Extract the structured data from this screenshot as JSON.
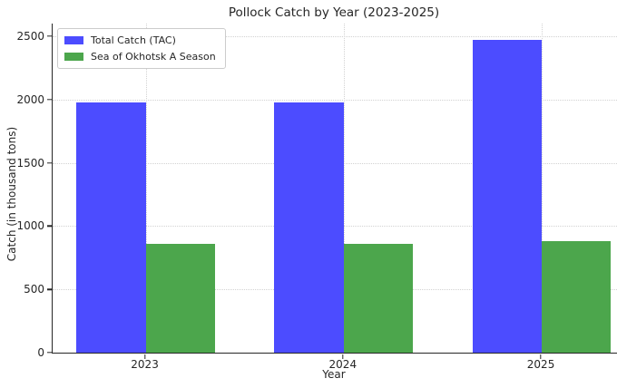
{
  "chart_data": {
    "type": "bar",
    "title": "Pollock Catch by Year (2023-2025)",
    "xlabel": "Year",
    "ylabel": "Catch (in thousand tons)",
    "categories": [
      "2023",
      "2024",
      "2025"
    ],
    "series": [
      {
        "name": "Total Catch (TAC)",
        "color": "#4C4CFF",
        "values": [
          1980,
          1980,
          2470
        ]
      },
      {
        "name": "Sea of Okhotsk A Season",
        "color": "#4CA64C",
        "values": [
          860,
          860,
          880
        ]
      }
    ],
    "yticks": [
      0,
      500,
      1000,
      1500,
      2000,
      2500
    ],
    "ylim": [
      0,
      2600
    ],
    "xlim": [
      -0.47,
      2.38
    ],
    "bar_width": 0.35,
    "grid": true,
    "grid_style": "dotted",
    "legend_position": "upper left",
    "colors": {
      "grid": "#d2d2d2",
      "spine": "#262626",
      "text": "#262626",
      "background": "#ffffff"
    }
  }
}
